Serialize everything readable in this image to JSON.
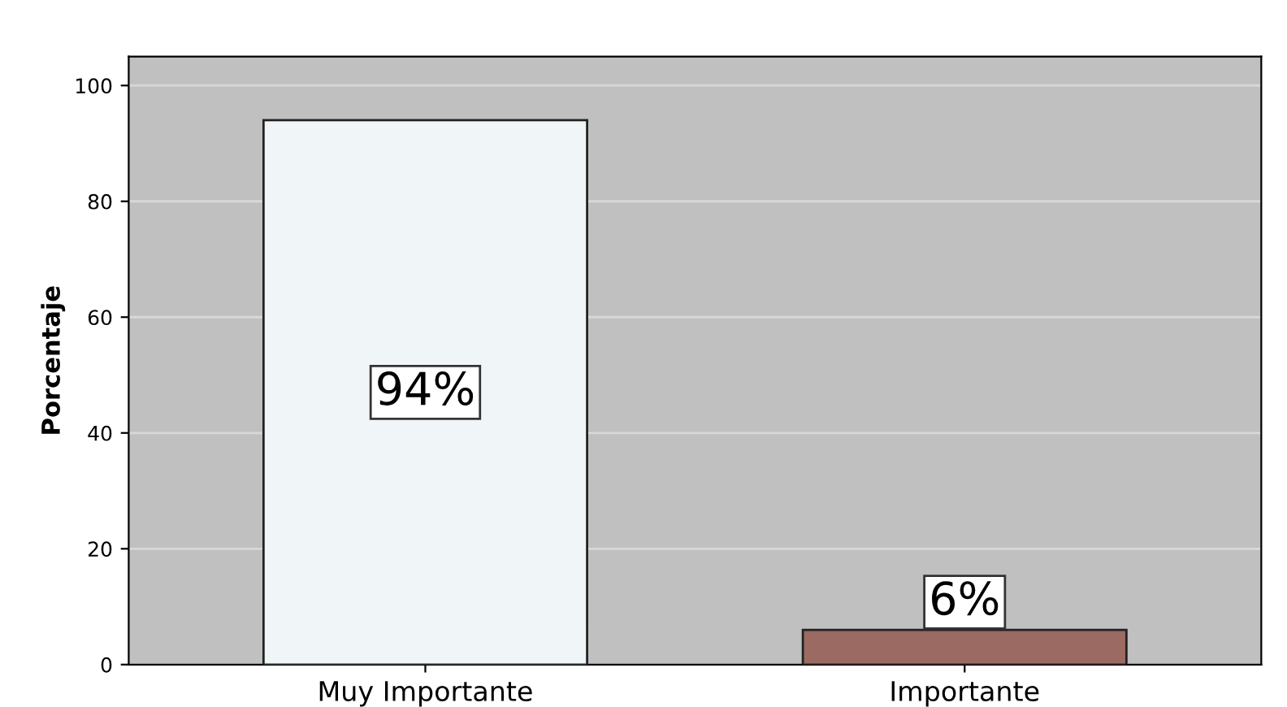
{
  "chart_data": {
    "type": "bar",
    "ylabel": "Porcentaje",
    "categories": [
      "Muy Importante",
      "Importante"
    ],
    "values": [
      94,
      6
    ],
    "colors": [
      "#f0f5f8",
      "#9b6a62"
    ],
    "value_labels": [
      "94%",
      "6%"
    ],
    "ylim": [
      0,
      105
    ],
    "yticks": [
      0,
      20,
      40,
      60,
      80,
      100
    ],
    "grid": "y"
  }
}
